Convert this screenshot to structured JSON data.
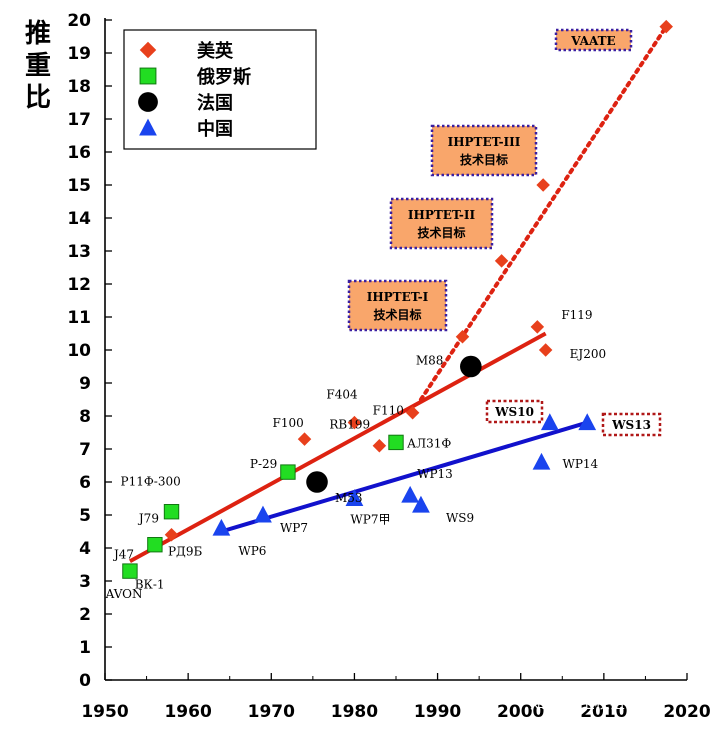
{
  "chart_data": {
    "type": "scatter",
    "ylabel": "推重比",
    "xlim": [
      1950,
      2020
    ],
    "ylim": [
      0,
      20
    ],
    "x_ticks": [
      1950,
      1960,
      1970,
      1980,
      1990,
      2000,
      2010,
      2020
    ],
    "y_ticks": [
      0,
      1,
      2,
      3,
      4,
      5,
      6,
      7,
      8,
      9,
      10,
      11,
      12,
      13,
      14,
      15,
      16,
      17,
      18,
      19,
      20
    ],
    "legend": {
      "placement": "top-left",
      "entries": [
        "美英",
        "俄罗斯",
        "法国",
        "中国"
      ]
    },
    "series": [
      {
        "name": "美英",
        "marker": "diamond",
        "color": "#e8401c",
        "points": [
          {
            "x": 1958,
            "y": 4.4,
            "label": ""
          },
          {
            "x": 1974,
            "y": 7.3,
            "label": "F100"
          },
          {
            "x": 1980,
            "y": 7.8,
            "label": "F404"
          },
          {
            "x": 1983,
            "y": 7.1,
            "label": "RB199"
          },
          {
            "x": 1987,
            "y": 8.1,
            "label": "F110"
          },
          {
            "x": 1993,
            "y": 10.4,
            "label": ""
          },
          {
            "x": 1997.7,
            "y": 12.7,
            "label": ""
          },
          {
            "x": 2002,
            "y": 10.7,
            "label": "F119"
          },
          {
            "x": 2003,
            "y": 10.0,
            "label": "EJ200"
          },
          {
            "x": 2002.7,
            "y": 15.0,
            "label": ""
          },
          {
            "x": 2017.5,
            "y": 19.8,
            "label": ""
          }
        ]
      },
      {
        "name": "俄罗斯",
        "marker": "square",
        "color": "#22dd22",
        "points": [
          {
            "x": 1953,
            "y": 3.3,
            "label": ""
          },
          {
            "x": 1956,
            "y": 4.1,
            "label": ""
          },
          {
            "x": 1958,
            "y": 5.1,
            "label": "Р11Ф-300"
          },
          {
            "x": 1972,
            "y": 6.3,
            "label": "Р-29"
          },
          {
            "x": 1985,
            "y": 7.2,
            "label": "АЛ31Ф"
          }
        ]
      },
      {
        "name": "法国",
        "marker": "circle",
        "color": "#000000",
        "points": [
          {
            "x": 1975.5,
            "y": 6.0,
            "label": "M53"
          },
          {
            "x": 1994,
            "y": 9.5,
            "label": "M88"
          }
        ]
      },
      {
        "name": "中国",
        "marker": "triangle",
        "color": "#1a44ee",
        "points": [
          {
            "x": 1964,
            "y": 4.6,
            "label": "WP6"
          },
          {
            "x": 1969,
            "y": 5.0,
            "label": "WP7"
          },
          {
            "x": 1980,
            "y": 5.5,
            "label": "WP7甲"
          },
          {
            "x": 1986.7,
            "y": 5.6,
            "label": "WP13"
          },
          {
            "x": 1988,
            "y": 5.3,
            "label": "WS9"
          },
          {
            "x": 2003.5,
            "y": 7.8,
            "label": ""
          },
          {
            "x": 2002.5,
            "y": 6.6,
            "label": "WP14"
          },
          {
            "x": 2008,
            "y": 7.8,
            "label": ""
          }
        ]
      }
    ],
    "extra_labels": [
      {
        "text": "J47",
        "x": 1953,
        "y": 3.8
      },
      {
        "text": "J79",
        "x": 1956,
        "y": 4.9
      },
      {
        "text": "РД9Б",
        "x": 1959.5,
        "y": 3.9
      },
      {
        "text": "ВК-1",
        "x": 1955.5,
        "y": 2.9
      },
      {
        "text": "AVON",
        "x": 1952,
        "y": 2.6
      }
    ],
    "trend_lines": [
      {
        "series": "美英",
        "style": "solid",
        "color": "#dd2211",
        "from": [
          1953,
          3.6
        ],
        "to": [
          2003,
          10.5
        ]
      },
      {
        "series": "美英",
        "style": "dotted",
        "color": "#dd2211",
        "from": [
          1988,
          8.5
        ],
        "to": [
          2017.5,
          19.8
        ]
      },
      {
        "series": "中国",
        "style": "solid",
        "color": "#1111cc",
        "from": [
          1964,
          4.5
        ],
        "to": [
          2008,
          7.8
        ]
      }
    ],
    "goal_boxes": [
      {
        "title": "IHPTET-I",
        "subtitle": "技术目标"
      },
      {
        "title": "IHPTET-II",
        "subtitle": "技术目标"
      },
      {
        "title": "IHPTET-III",
        "subtitle": "技术目标"
      },
      {
        "title": "VAATE",
        "subtitle": ""
      }
    ],
    "engine_boxes": [
      "WS10",
      "WS13"
    ]
  },
  "watermark": "知乎 @上校狙击手",
  "colors": {
    "goal_fill": "#f9a66b",
    "goal_border": "#3a1fa0",
    "engine_box_border": "#b01818"
  }
}
